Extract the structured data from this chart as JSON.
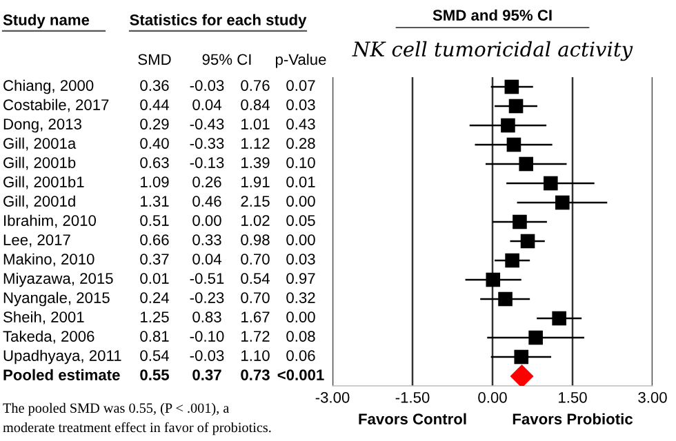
{
  "chart_data": [
    {
      "type": "heatmap",
      "title": "Statistics for each study",
      "ylabel": "Study name",
      "categories": [
        "SMD",
        "95% CI",
        null,
        "p-Value"
      ],
      "y_categories": [
        "Chiang, 2000",
        "Costabile, 2017",
        "Dong, 2013",
        "Gill, 2001a",
        "Gill, 2001b",
        "Gill, 2001b1",
        "Gill, 2001d",
        "Ibrahim, 2010",
        "Lee, 2017",
        "Makino, 2010",
        "Miyazawa, 2015",
        "Nyangale, 2015",
        "Sheih, 2001",
        "Takeda, 2006",
        "Upadhyaya, 2011",
        "Pooled estimate"
      ],
      "cells": [
        [
          0.36,
          -0.03,
          0.76,
          0.07
        ],
        [
          0.44,
          0.04,
          0.84,
          0.03
        ],
        [
          0.29,
          -0.43,
          1.01,
          0.43
        ],
        [
          0.4,
          -0.33,
          1.12,
          0.28
        ],
        [
          0.63,
          -0.13,
          1.39,
          0.1
        ],
        [
          1.09,
          0.26,
          1.91,
          0.01
        ],
        [
          1.31,
          0.46,
          2.15,
          0.0
        ],
        [
          0.51,
          0.0,
          1.02,
          0.05
        ],
        [
          0.66,
          0.33,
          0.98,
          0.0
        ],
        [
          0.37,
          0.04,
          0.7,
          0.03
        ],
        [
          0.01,
          -0.51,
          0.54,
          0.97
        ],
        [
          0.24,
          -0.23,
          0.7,
          0.32
        ],
        [
          1.25,
          0.83,
          1.67,
          0.0
        ],
        [
          0.81,
          -0.1,
          1.72,
          0.08
        ],
        [
          0.54,
          -0.03,
          1.1,
          0.06
        ],
        [
          0.55,
          0.37,
          0.73,
          null
        ]
      ],
      "cell_labels": [
        [
          "0.36",
          "-0.03",
          "0.76",
          "0.07"
        ],
        [
          "0.44",
          "0.04",
          "0.84",
          "0.03"
        ],
        [
          "0.29",
          "-0.43",
          "1.01",
          "0.43"
        ],
        [
          "0.40",
          "-0.33",
          "1.12",
          "0.28"
        ],
        [
          "0.63",
          "-0.13",
          "1.39",
          "0.10"
        ],
        [
          "1.09",
          "0.26",
          "1.91",
          "0.01"
        ],
        [
          "1.31",
          "0.46",
          "2.15",
          "0.00"
        ],
        [
          "0.51",
          "0.00",
          "1.02",
          "0.05"
        ],
        [
          "0.66",
          "0.33",
          "0.98",
          "0.00"
        ],
        [
          "0.37",
          "0.04",
          "0.70",
          "0.03"
        ],
        [
          "0.01",
          "-0.51",
          "0.54",
          "0.97"
        ],
        [
          "0.24",
          "-0.23",
          "0.70",
          "0.32"
        ],
        [
          "1.25",
          "0.83",
          "1.67",
          "0.00"
        ],
        [
          "0.81",
          "-0.10",
          "1.72",
          "0.08"
        ],
        [
          "0.54",
          "-0.03",
          "1.10",
          "0.06"
        ],
        [
          "0.55",
          "0.37",
          "0.73",
          "<0.001"
        ]
      ],
      "annotations": [
        "The pooled SMD was 0.55, (P < .001), a",
        "moderate treatment effect in favor of probiotics."
      ]
    },
    {
      "type": "scatter",
      "orientation": "horizontal",
      "title": "SMD and 95% CI",
      "subtitle": "NK cell tumoricidal activity",
      "categories": [
        null,
        null,
        null,
        null,
        null,
        null,
        null,
        null,
        null,
        null,
        null,
        null,
        null,
        null,
        null,
        null
      ],
      "series": [
        {
          "color": "#000000",
          "marker": "square",
          "values": [
            0.36,
            0.44,
            0.29,
            0.4,
            0.63,
            1.09,
            1.31,
            0.51,
            0.66,
            0.37,
            0.01,
            0.24,
            1.25,
            0.81,
            0.54,
            null
          ],
          "errors": [
            [
              -0.03,
              0.76
            ],
            [
              0.04,
              0.84
            ],
            [
              -0.43,
              1.01
            ],
            [
              -0.33,
              1.12
            ],
            [
              -0.13,
              1.39
            ],
            [
              0.26,
              1.91
            ],
            [
              0.46,
              2.15
            ],
            [
              0.0,
              1.02
            ],
            [
              0.33,
              0.98
            ],
            [
              0.04,
              0.7
            ],
            [
              -0.51,
              0.54
            ],
            [
              -0.23,
              0.7
            ],
            [
              0.83,
              1.67
            ],
            [
              -0.1,
              1.72
            ],
            [
              -0.03,
              1.1
            ],
            null
          ]
        },
        {
          "color": "#ff0000",
          "marker": "diamond",
          "values": [
            null,
            null,
            null,
            null,
            null,
            null,
            null,
            null,
            null,
            null,
            null,
            null,
            null,
            null,
            null,
            0.55
          ]
        }
      ],
      "xlim": [
        -3.0,
        3.0
      ],
      "xticks": [
        {
          "value": -3.0,
          "label": "-3.00"
        },
        {
          "value": -1.5,
          "label": "-1.50"
        },
        {
          "value": 0.0,
          "label": "0.00"
        },
        {
          "value": 1.5,
          "label": "1.50"
        },
        {
          "value": 3.0,
          "label": "3.00"
        }
      ],
      "grid": "x",
      "tick_labels": "x",
      "annotations": [
        "Favors Control",
        "Favors Probiotic"
      ]
    }
  ]
}
